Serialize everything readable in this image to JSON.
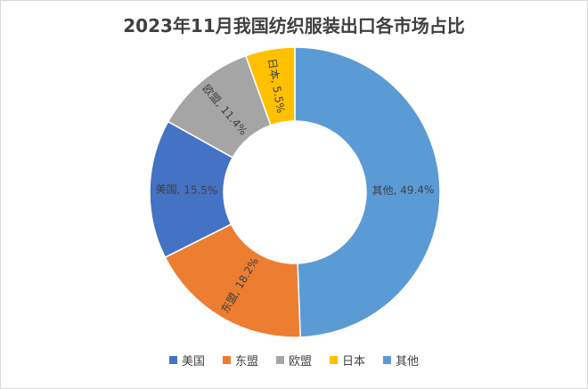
{
  "chart_data": {
    "type": "pie",
    "title": "2023年11月我国纺织服装出口各市场占比",
    "categories": [
      "其他",
      "东盟",
      "美国",
      "欧盟",
      "日本"
    ],
    "values": [
      49.4,
      18.2,
      15.5,
      11.4,
      5.5
    ],
    "data_labels": [
      "其他, 49.4%",
      "东盟, 18.2%",
      "美国, 15.5%",
      "欧盟, 11.4%",
      "日本, 5.5%"
    ],
    "colors": [
      "#5b9bd5",
      "#ed7d31",
      "#4472c4",
      "#a5a5a5",
      "#ffc000"
    ],
    "donut": true,
    "legend_position": "bottom",
    "legend": [
      {
        "label": "美国",
        "color": "#4472c4"
      },
      {
        "label": "东盟",
        "color": "#ed7d31"
      },
      {
        "label": "欧盟",
        "color": "#a5a5a5"
      },
      {
        "label": "日本",
        "color": "#ffc000"
      },
      {
        "label": "其他",
        "color": "#5b9bd5"
      }
    ]
  }
}
